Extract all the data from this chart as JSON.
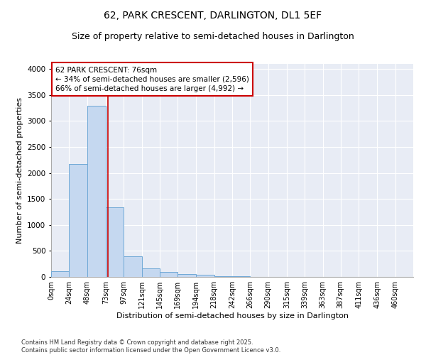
{
  "title_line1": "62, PARK CRESCENT, DARLINGTON, DL1 5EF",
  "title_line2": "Size of property relative to semi-detached houses in Darlington",
  "xlabel": "Distribution of semi-detached houses by size in Darlington",
  "ylabel": "Number of semi-detached properties",
  "footer_line1": "Contains HM Land Registry data © Crown copyright and database right 2025.",
  "footer_line2": "Contains public sector information licensed under the Open Government Licence v3.0.",
  "annotation_line1": "62 PARK CRESCENT: 76sqm",
  "annotation_line2": "← 34% of semi-detached houses are smaller (2,596)",
  "annotation_line3": "66% of semi-detached houses are larger (4,992) →",
  "property_size": 76,
  "bar_color": "#c5d8f0",
  "bar_edge_color": "#6fa8d6",
  "vline_color": "#cc0000",
  "annotation_box_edge_color": "#cc0000",
  "background_color": "#e8ecf5",
  "grid_color": "#ffffff",
  "ylim": [
    0,
    4100
  ],
  "yticks": [
    0,
    500,
    1000,
    1500,
    2000,
    2500,
    3000,
    3500,
    4000
  ],
  "bin_edges": [
    0,
    24,
    48,
    73,
    97,
    121,
    145,
    169,
    194,
    218,
    242,
    266,
    290,
    315,
    339,
    363,
    387,
    411,
    436,
    460,
    484
  ],
  "bar_heights": [
    105,
    2170,
    3290,
    1340,
    390,
    170,
    100,
    55,
    35,
    20,
    10,
    5,
    0,
    0,
    0,
    0,
    0,
    0,
    0,
    0
  ],
  "title1_fontsize": 10,
  "title2_fontsize": 9,
  "axis_label_fontsize": 8,
  "tick_fontsize": 7,
  "annotation_fontsize": 7.5,
  "footer_fontsize": 6
}
